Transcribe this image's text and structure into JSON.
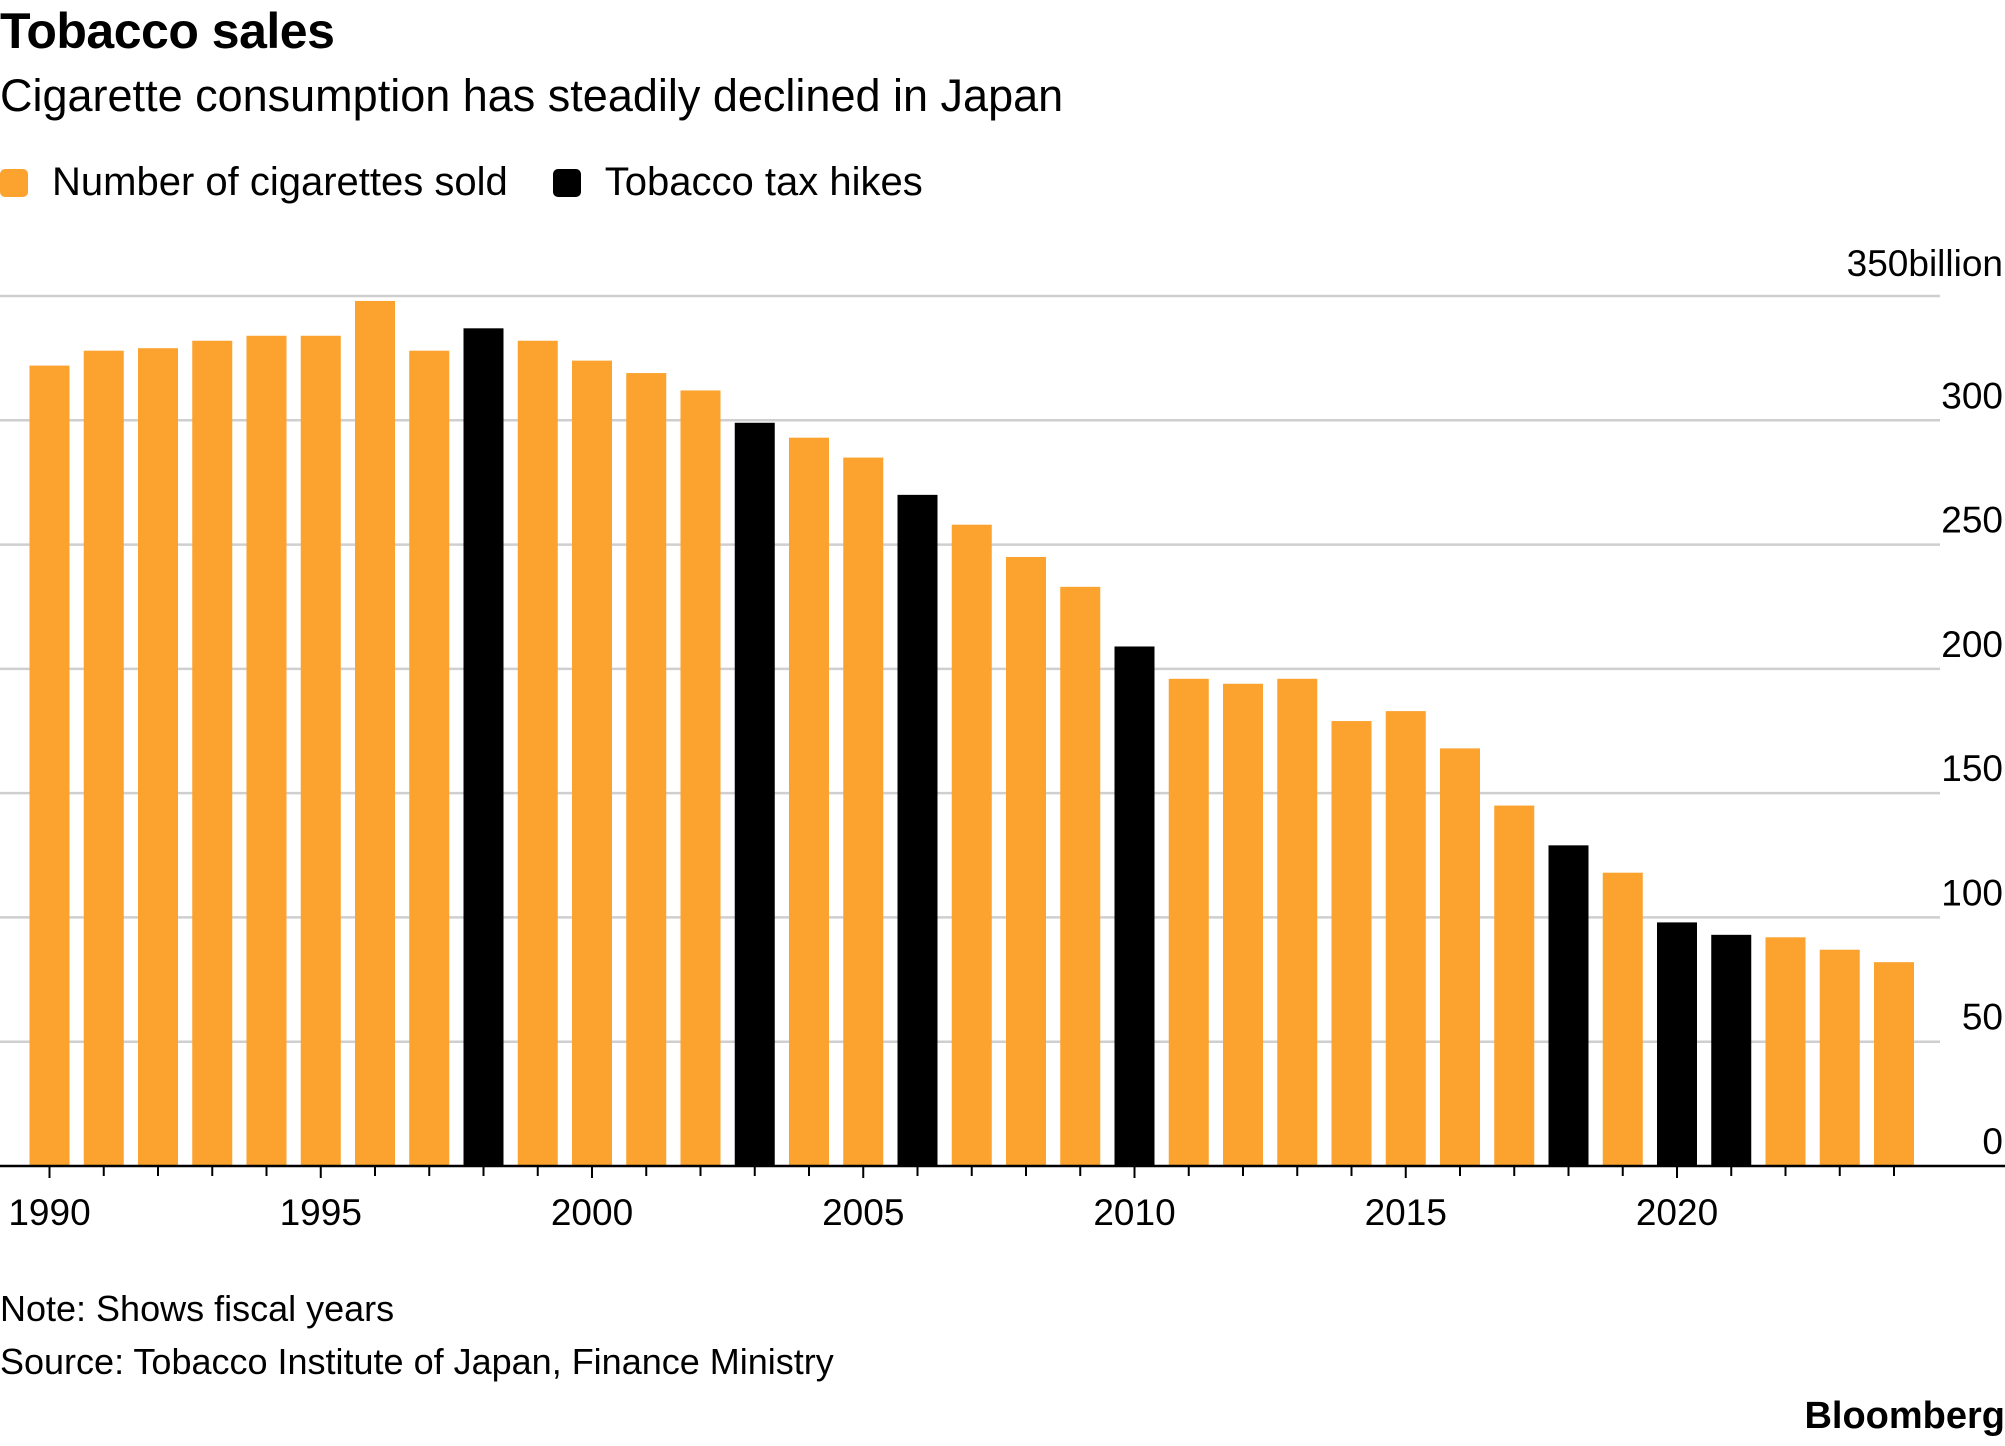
{
  "header": {
    "title": "Tobacco sales",
    "subtitle": "Cigarette consumption has steadily declined in Japan"
  },
  "legend": {
    "items": [
      {
        "label": "Number of cigarettes sold",
        "color": "#FBA22F"
      },
      {
        "label": "Tobacco tax hikes",
        "color": "#000000"
      }
    ]
  },
  "footer": {
    "note": "Note: Shows fiscal years",
    "source": "Source: Tobacco Institute of Japan, Finance Ministry",
    "brand": "Bloomberg"
  },
  "chart_data": {
    "type": "bar",
    "title": "Tobacco sales",
    "subtitle": "Cigarette consumption has steadily declined in Japan",
    "ylim": [
      0,
      350
    ],
    "ytick_labels": [
      "0",
      "50",
      "100",
      "150",
      "200",
      "250",
      "300",
      "350billion"
    ],
    "xtick_labels": [
      "1990",
      "1995",
      "2000",
      "2005",
      "2010",
      "2015",
      "2020"
    ],
    "grid": true,
    "legend_position": "top-left",
    "colors": {
      "sold": "#FBA22F",
      "tax_hike": "#000000"
    },
    "categories": [
      1990,
      1991,
      1992,
      1993,
      1994,
      1995,
      1996,
      1997,
      1998,
      1999,
      2000,
      2001,
      2002,
      2003,
      2004,
      2005,
      2006,
      2007,
      2008,
      2009,
      2010,
      2011,
      2012,
      2013,
      2014,
      2015,
      2016,
      2017,
      2018,
      2019,
      2020,
      2021,
      2022,
      2023,
      2024
    ],
    "values": [
      322,
      328,
      329,
      332,
      334,
      334,
      348,
      328,
      337,
      332,
      324,
      319,
      312,
      299,
      293,
      285,
      270,
      258,
      245,
      233,
      209,
      196,
      194,
      196,
      179,
      183,
      168,
      145,
      129,
      118,
      98,
      93,
      92,
      87,
      82
    ],
    "tax_hike_years": [
      1998,
      2003,
      2006,
      2010,
      2018,
      2020,
      2021
    ]
  }
}
